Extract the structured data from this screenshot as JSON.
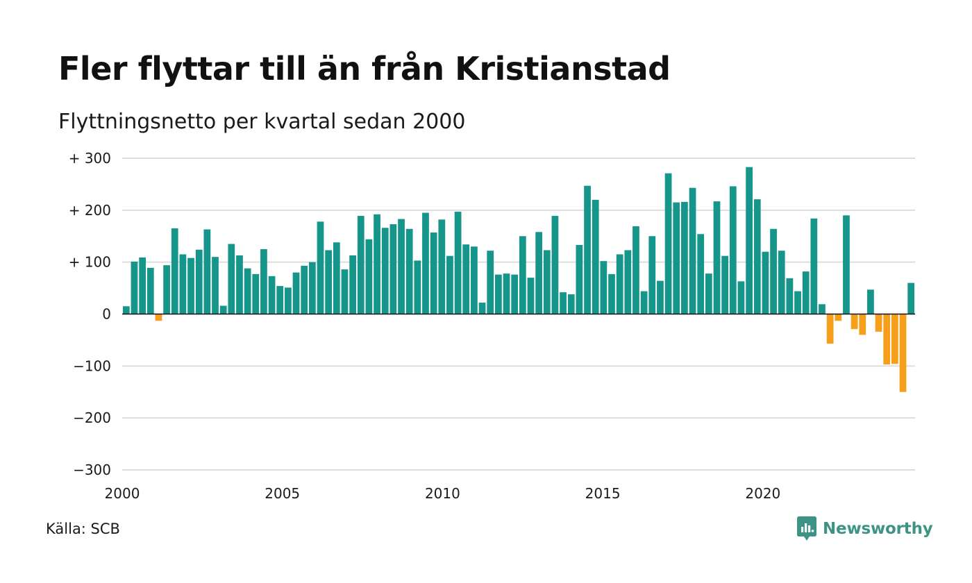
{
  "title": "Fler flyttar till än från Kristianstad",
  "subtitle": "Flyttningsnetto per kvartal sedan 2000",
  "source": "Källa: SCB",
  "brand": {
    "name": "Newsworthy",
    "icon": "newsworthy-logo-icon",
    "color": "#3d9485"
  },
  "colors": {
    "positive": "#16968a",
    "negative": "#f59f1a",
    "grid": "#dddddd",
    "zero_line": "#111111"
  },
  "chart_data": {
    "type": "bar",
    "title": "Fler flyttar till än från Kristianstad",
    "subtitle": "Flyttningsnetto per kvartal sedan 2000",
    "ylim": [
      -300,
      300
    ],
    "xlim": [
      2000,
      2024.75
    ],
    "grid": true,
    "y_ticks": [
      {
        "value": 300,
        "label": "+ 300"
      },
      {
        "value": 200,
        "label": "+ 200"
      },
      {
        "value": 100,
        "label": "+ 100"
      },
      {
        "value": 0,
        "label": "0"
      },
      {
        "value": -100,
        "label": "−100"
      },
      {
        "value": -200,
        "label": "−200"
      },
      {
        "value": -300,
        "label": "−300"
      }
    ],
    "x_ticks": [
      {
        "value": 2000,
        "label": "2000"
      },
      {
        "value": 2005,
        "label": "2005"
      },
      {
        "value": 2010,
        "label": "2010"
      },
      {
        "value": 2015,
        "label": "2015"
      },
      {
        "value": 2020,
        "label": "2020"
      }
    ],
    "start_year": 2000,
    "quarters_per_year": 4,
    "values": [
      15,
      101,
      109,
      89,
      -13,
      94,
      165,
      115,
      108,
      124,
      163,
      110,
      16,
      135,
      113,
      88,
      77,
      125,
      73,
      54,
      51,
      80,
      93,
      100,
      178,
      123,
      138,
      86,
      113,
      189,
      144,
      192,
      166,
      173,
      183,
      164,
      103,
      195,
      157,
      182,
      112,
      197,
      134,
      130,
      22,
      122,
      76,
      78,
      76,
      150,
      70,
      158,
      123,
      189,
      42,
      38,
      133,
      247,
      220,
      102,
      77,
      115,
      123,
      169,
      44,
      150,
      64,
      271,
      215,
      216,
      243,
      154,
      78,
      217,
      112,
      246,
      63,
      283,
      221,
      120,
      164,
      122,
      69,
      44,
      82,
      184,
      19,
      -57,
      -13,
      190,
      -29,
      -40,
      47,
      -34,
      -97,
      -96,
      -150,
      60
    ]
  }
}
